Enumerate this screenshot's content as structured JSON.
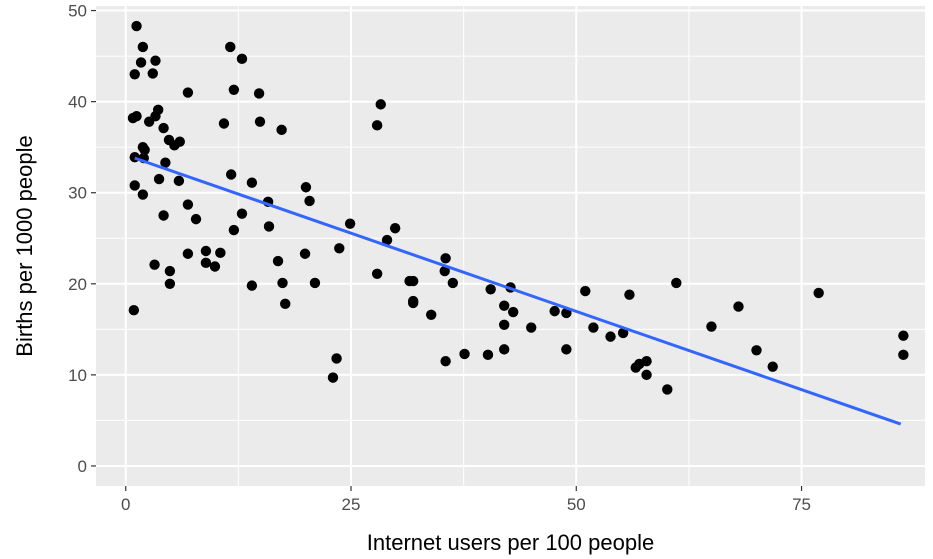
{
  "chart_data": {
    "type": "scatter",
    "title": "",
    "xlabel": "Internet users per 100 people",
    "ylabel": "Births per 1000 people",
    "xlim": [
      -3.3,
      88.7
    ],
    "ylim": [
      -2.2,
      50.5
    ],
    "x_ticks": [
      0,
      25,
      50,
      75
    ],
    "x_tick_labels": [
      "0",
      "25",
      "50",
      "75"
    ],
    "y_ticks": [
      0,
      10,
      20,
      30,
      40,
      50
    ],
    "y_tick_labels": [
      "0",
      "10",
      "20",
      "30",
      "40",
      "50"
    ],
    "grid": true,
    "legend": "none",
    "colors": {
      "panel_background": "#EBEBEB",
      "grid": "#FFFFFF",
      "points": "#000000",
      "trend_line": "#3366FF"
    },
    "trend_line": {
      "x": [
        1.0,
        86.0
      ],
      "y": [
        33.8,
        4.6
      ]
    },
    "points": [
      [
        1.2,
        48.3
      ],
      [
        1.0,
        43.0
      ],
      [
        1.2,
        38.4
      ],
      [
        0.8,
        38.2
      ],
      [
        1.0,
        33.9
      ],
      [
        1.0,
        30.8
      ],
      [
        0.9,
        17.1
      ],
      [
        1.9,
        46.0
      ],
      [
        1.7,
        44.3
      ],
      [
        1.9,
        35.0
      ],
      [
        2.0,
        33.8
      ],
      [
        1.9,
        29.8
      ],
      [
        2.1,
        34.7
      ],
      [
        3.0,
        43.1
      ],
      [
        3.3,
        44.5
      ],
      [
        2.6,
        37.8
      ],
      [
        3.3,
        38.4
      ],
      [
        3.6,
        39.1
      ],
      [
        3.7,
        31.5
      ],
      [
        3.2,
        22.1
      ],
      [
        4.2,
        37.1
      ],
      [
        4.4,
        33.3
      ],
      [
        4.2,
        27.5
      ],
      [
        4.8,
        35.8
      ],
      [
        5.4,
        35.2
      ],
      [
        6.0,
        35.6
      ],
      [
        5.9,
        31.3
      ],
      [
        4.9,
        21.4
      ],
      [
        4.9,
        20.0
      ],
      [
        6.9,
        41.0
      ],
      [
        6.9,
        28.7
      ],
      [
        6.9,
        23.3
      ],
      [
        7.8,
        27.1
      ],
      [
        8.9,
        23.6
      ],
      [
        8.9,
        22.3
      ],
      [
        9.9,
        21.9
      ],
      [
        10.5,
        23.4
      ],
      [
        11.6,
        46.0
      ],
      [
        12.0,
        41.3
      ],
      [
        12.9,
        44.7
      ],
      [
        10.9,
        37.6
      ],
      [
        11.7,
        32.0
      ],
      [
        12.9,
        27.7
      ],
      [
        12.0,
        25.9
      ],
      [
        14.0,
        31.1
      ],
      [
        14.0,
        19.8
      ],
      [
        14.8,
        40.9
      ],
      [
        14.9,
        37.8
      ],
      [
        15.8,
        29.0
      ],
      [
        15.9,
        26.3
      ],
      [
        17.3,
        36.9
      ],
      [
        16.9,
        22.5
      ],
      [
        17.4,
        20.1
      ],
      [
        17.7,
        17.8
      ],
      [
        20.0,
        30.6
      ],
      [
        20.4,
        29.1
      ],
      [
        19.9,
        23.3
      ],
      [
        21.0,
        20.1
      ],
      [
        23.7,
        23.9
      ],
      [
        23.4,
        11.8
      ],
      [
        23.0,
        9.7
      ],
      [
        24.9,
        26.6
      ],
      [
        27.9,
        37.4
      ],
      [
        28.3,
        39.7
      ],
      [
        27.9,
        21.1
      ],
      [
        29.0,
        24.8
      ],
      [
        29.9,
        26.1
      ],
      [
        31.5,
        20.3
      ],
      [
        31.9,
        20.3
      ],
      [
        31.9,
        18.1
      ],
      [
        31.9,
        17.9
      ],
      [
        33.9,
        16.6
      ],
      [
        35.5,
        22.8
      ],
      [
        35.4,
        21.4
      ],
      [
        36.3,
        20.1
      ],
      [
        35.5,
        11.5
      ],
      [
        37.6,
        12.3
      ],
      [
        40.5,
        19.4
      ],
      [
        40.2,
        12.2
      ],
      [
        42.0,
        17.6
      ],
      [
        42.7,
        19.6
      ],
      [
        42.0,
        15.5
      ],
      [
        43.0,
        16.9
      ],
      [
        42.0,
        12.8
      ],
      [
        45.0,
        15.2
      ],
      [
        47.6,
        17.0
      ],
      [
        48.9,
        16.8
      ],
      [
        48.9,
        12.8
      ],
      [
        51.0,
        19.2
      ],
      [
        51.9,
        15.2
      ],
      [
        53.8,
        14.2
      ],
      [
        55.2,
        14.6
      ],
      [
        55.9,
        18.8
      ],
      [
        57.0,
        11.2
      ],
      [
        56.6,
        10.8
      ],
      [
        57.8,
        11.5
      ],
      [
        57.8,
        10.0
      ],
      [
        60.1,
        8.4
      ],
      [
        61.1,
        20.1
      ],
      [
        65.0,
        15.3
      ],
      [
        68.0,
        17.5
      ],
      [
        70.0,
        12.7
      ],
      [
        71.8,
        10.9
      ],
      [
        76.9,
        19.0
      ],
      [
        86.3,
        14.3
      ],
      [
        86.3,
        12.2
      ]
    ]
  }
}
